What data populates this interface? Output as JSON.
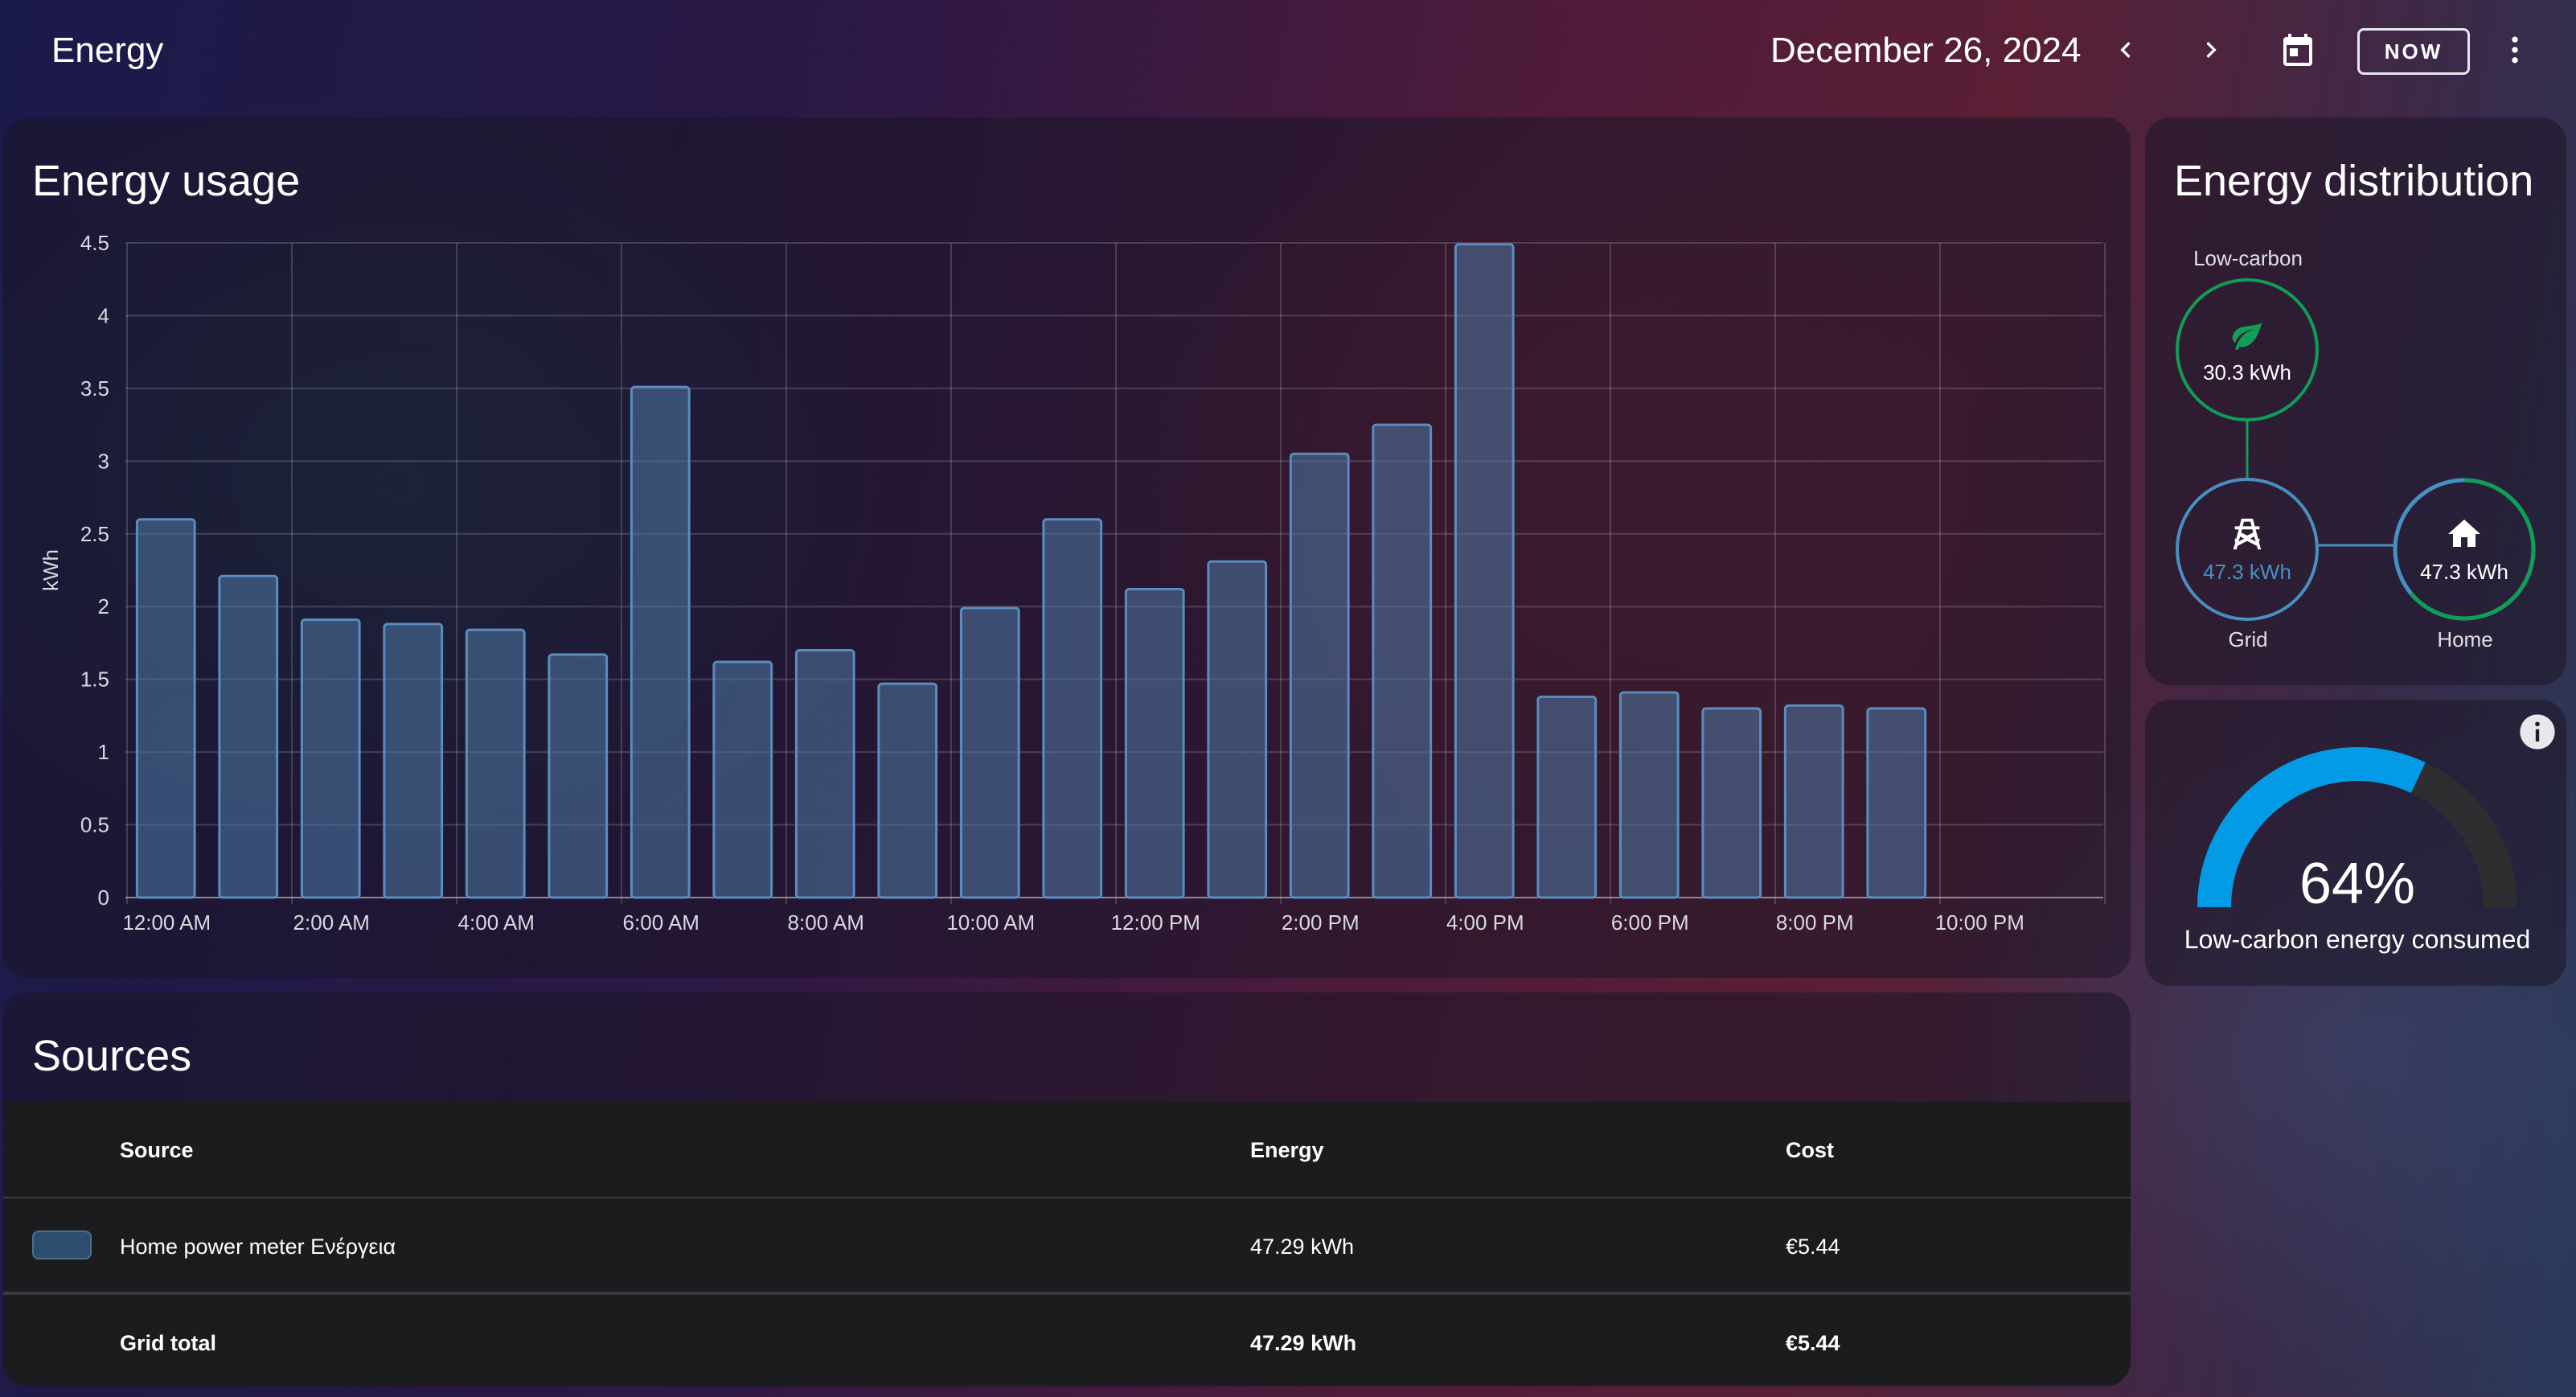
{
  "header": {
    "title": "Energy",
    "date": "December 26, 2024",
    "now_label": "NOW",
    "icons": [
      "chevron-left-icon",
      "chevron-right-icon",
      "calendar-icon",
      "more-vert-icon"
    ]
  },
  "usage_card": {
    "title": "Energy usage"
  },
  "chart_data": {
    "type": "bar",
    "title": "Energy usage",
    "ylabel": "kWh",
    "xlabel": "",
    "ylim": [
      0,
      4.5
    ],
    "yticks": [
      "0",
      "0.5",
      "1",
      "1.5",
      "2",
      "2.5",
      "3",
      "3.5",
      "4",
      "4.5"
    ],
    "xtick_labels": [
      "12:00 AM",
      "2:00 AM",
      "4:00 AM",
      "6:00 AM",
      "8:00 AM",
      "10:00 AM",
      "12:00 PM",
      "2:00 PM",
      "4:00 PM",
      "6:00 PM",
      "8:00 PM",
      "10:00 PM"
    ],
    "categories": [
      "12:00 AM",
      "1:00 AM",
      "2:00 AM",
      "3:00 AM",
      "4:00 AM",
      "5:00 AM",
      "6:00 AM",
      "7:00 AM",
      "8:00 AM",
      "9:00 AM",
      "10:00 AM",
      "11:00 AM",
      "12:00 PM",
      "1:00 PM",
      "2:00 PM",
      "3:00 PM",
      "4:00 PM",
      "5:00 PM",
      "6:00 PM",
      "7:00 PM",
      "8:00 PM",
      "9:00 PM",
      "10:00 PM",
      "11:00 PM"
    ],
    "values": [
      2.6,
      2.21,
      1.91,
      1.88,
      1.84,
      1.67,
      3.51,
      1.62,
      1.7,
      1.47,
      1.99,
      2.6,
      2.12,
      2.31,
      3.05,
      3.25,
      4.49,
      1.38,
      1.41,
      1.3,
      1.32,
      1.3,
      null,
      null
    ],
    "grid": true,
    "bar_color": "#4f7aa6"
  },
  "sources_card": {
    "title": "Sources",
    "headers": {
      "source": "Source",
      "energy": "Energy",
      "cost": "Cost"
    },
    "rows": [
      {
        "source": "Home power meter Ενέργεια",
        "energy": "47.29 kWh",
        "cost": "€5.44"
      }
    ],
    "total": {
      "source": "Grid total",
      "energy": "47.29 kWh",
      "cost": "€5.44"
    }
  },
  "distribution_card": {
    "title": "Energy distribution",
    "low_carbon": {
      "label": "Low-carbon",
      "value": "30.3 kWh",
      "icon": "leaf-icon"
    },
    "grid": {
      "label": "Grid",
      "value": "47.3 kWh",
      "icon": "transmission-tower-icon"
    },
    "home": {
      "label": "Home",
      "value": "47.3 kWh",
      "icon": "home-icon"
    },
    "colors": {
      "low_carbon": "#0f9d58",
      "grid": "#488fc2",
      "home_low_carbon_share": 0.64
    }
  },
  "gauge_card": {
    "value": 64,
    "value_text": "64%",
    "label": "Low-carbon energy consumed",
    "info_icon": "info-icon",
    "colors": {
      "fill": "#039be5",
      "track": "#2e2e30"
    }
  }
}
